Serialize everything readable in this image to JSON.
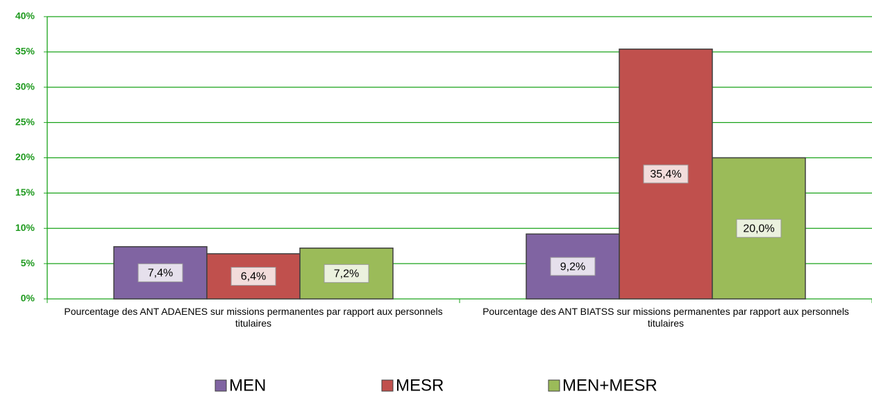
{
  "chart_data": {
    "type": "bar",
    "categories": [
      "Pourcentage des ANT ADAENES sur missions permanentes par rapport aux personnels titulaires",
      "Pourcentage des ANT BIATSS sur missions permanentes par rapport aux personnels titulaires"
    ],
    "series": [
      {
        "name": "MEN",
        "color": "#8064a2",
        "values": [
          7.4,
          9.2
        ],
        "value_labels": [
          "7,4%",
          "9,2%"
        ]
      },
      {
        "name": "MESR",
        "color": "#c0504d",
        "values": [
          6.4,
          35.4
        ],
        "value_labels": [
          "6,4%",
          "35,4%"
        ]
      },
      {
        "name": "MEN+MESR",
        "color": "#9bbb59",
        "values": [
          7.2,
          20.0
        ],
        "value_labels": [
          "7,2%",
          "20,0%"
        ]
      }
    ],
    "ylim": [
      0,
      40
    ],
    "yticks": [
      {
        "value": 0,
        "label": "0%"
      },
      {
        "value": 5,
        "label": "5%"
      },
      {
        "value": 10,
        "label": "10%"
      },
      {
        "value": 15,
        "label": "15%"
      },
      {
        "value": 20,
        "label": "20%"
      },
      {
        "value": 25,
        "label": "25%"
      },
      {
        "value": 30,
        "label": "30%"
      },
      {
        "value": 35,
        "label": "35%"
      },
      {
        "value": 40,
        "label": "40%"
      }
    ],
    "grid": true,
    "legend": "bottom"
  }
}
